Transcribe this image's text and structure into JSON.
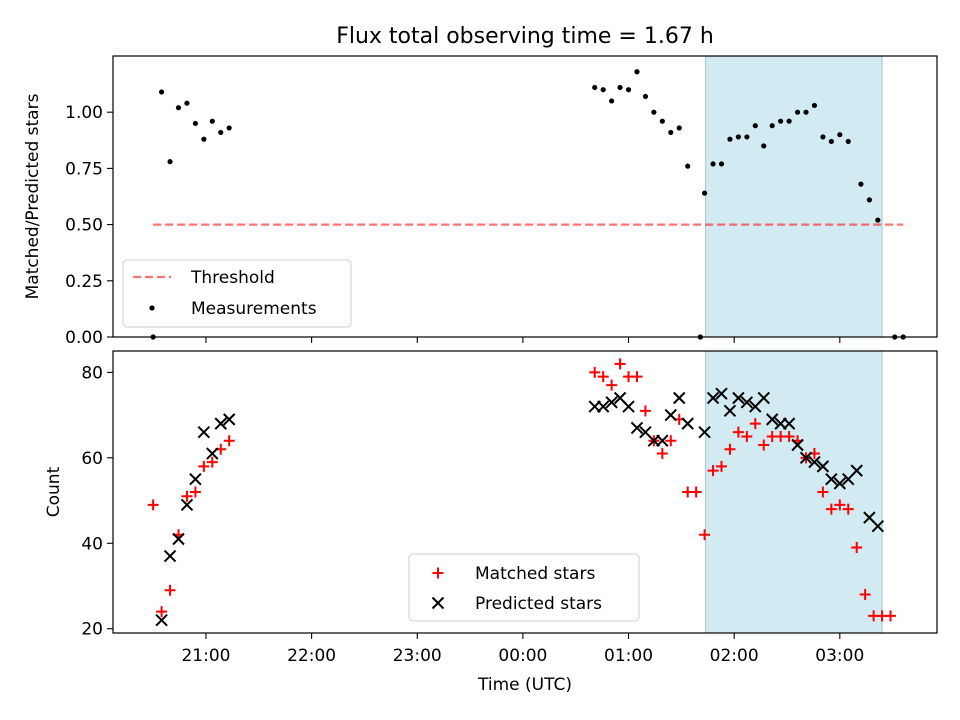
{
  "figure": {
    "title": "Flux total observing time = 1.67 h"
  },
  "chart_data": [
    {
      "type": "scatter",
      "ylabel": "Matched/Predicted stars",
      "xlim_hours": [
        -3.88,
        3.92
      ],
      "ylim": [
        0,
        1.25
      ],
      "ytick_values": [
        0.0,
        0.25,
        0.5,
        0.75,
        1.0
      ],
      "yticks": [
        "0.00",
        "0.25",
        "0.50",
        "0.75",
        "1.00"
      ],
      "x_tick_hours": [
        -3,
        -2,
        -1,
        0,
        1,
        2,
        3
      ],
      "shaded_span": {
        "x0": 1.73,
        "x1": 3.4,
        "color": "#add8e6"
      },
      "threshold": {
        "name": "Threshold",
        "x": [
          -3.5,
          3.6
        ],
        "y": 0.5,
        "color": "#ff0000",
        "style": "dashed"
      },
      "series": [
        {
          "name": "Measurements",
          "color": "#000000",
          "marker": "dot",
          "points": [
            [
              -3.5,
              0.0
            ],
            [
              -3.42,
              1.09
            ],
            [
              -3.34,
              0.78
            ],
            [
              -3.26,
              1.02
            ],
            [
              -3.18,
              1.04
            ],
            [
              -3.1,
              0.95
            ],
            [
              -3.02,
              0.88
            ],
            [
              -2.94,
              0.96
            ],
            [
              -2.86,
              0.91
            ],
            [
              -2.78,
              0.93
            ],
            [
              0.68,
              1.11
            ],
            [
              0.76,
              1.1
            ],
            [
              0.84,
              1.05
            ],
            [
              0.92,
              1.11
            ],
            [
              1.0,
              1.1
            ],
            [
              1.08,
              1.18
            ],
            [
              1.16,
              1.07
            ],
            [
              1.24,
              1.0
            ],
            [
              1.32,
              0.96
            ],
            [
              1.4,
              0.91
            ],
            [
              1.48,
              0.93
            ],
            [
              1.56,
              0.76
            ],
            [
              1.68,
              0.0
            ],
            [
              1.72,
              0.64
            ],
            [
              1.8,
              0.77
            ],
            [
              1.88,
              0.77
            ],
            [
              1.96,
              0.88
            ],
            [
              2.04,
              0.89
            ],
            [
              2.12,
              0.89
            ],
            [
              2.2,
              0.94
            ],
            [
              2.28,
              0.85
            ],
            [
              2.36,
              0.94
            ],
            [
              2.44,
              0.96
            ],
            [
              2.52,
              0.96
            ],
            [
              2.6,
              1.0
            ],
            [
              2.68,
              1.0
            ],
            [
              2.76,
              1.03
            ],
            [
              2.84,
              0.89
            ],
            [
              2.92,
              0.87
            ],
            [
              3.0,
              0.9
            ],
            [
              3.08,
              0.87
            ],
            [
              3.2,
              0.68
            ],
            [
              3.28,
              0.61
            ],
            [
              3.36,
              0.52
            ],
            [
              3.52,
              0.0
            ],
            [
              3.6,
              0.0
            ]
          ]
        }
      ],
      "legend": {
        "position": "lower-left",
        "entries": [
          "Threshold",
          "Measurements"
        ]
      }
    },
    {
      "type": "scatter",
      "xlabel": "Time (UTC)",
      "ylabel": "Count",
      "xlim_hours": [
        -3.88,
        3.92
      ],
      "ylim": [
        19,
        85
      ],
      "ytick_values": [
        20,
        40,
        60,
        80
      ],
      "yticks": [
        "20",
        "40",
        "60",
        "80"
      ],
      "x_tick_hours": [
        -3,
        -2,
        -1,
        0,
        1,
        2,
        3
      ],
      "xticks": [
        "21:00",
        "22:00",
        "23:00",
        "00:00",
        "01:00",
        "02:00",
        "03:00"
      ],
      "shaded_span": {
        "x0": 1.73,
        "x1": 3.4,
        "color": "#add8e6"
      },
      "series": [
        {
          "name": "Matched stars",
          "color": "#ff0000",
          "marker": "plus",
          "points": [
            [
              -3.5,
              49
            ],
            [
              -3.42,
              24
            ],
            [
              -3.34,
              29
            ],
            [
              -3.26,
              42
            ],
            [
              -3.18,
              51
            ],
            [
              -3.1,
              52
            ],
            [
              -3.02,
              58
            ],
            [
              -2.94,
              59
            ],
            [
              -2.86,
              62
            ],
            [
              -2.78,
              64
            ],
            [
              0.68,
              80
            ],
            [
              0.76,
              79
            ],
            [
              0.84,
              77
            ],
            [
              0.92,
              82
            ],
            [
              1.0,
              79
            ],
            [
              1.08,
              79
            ],
            [
              1.16,
              71
            ],
            [
              1.24,
              64
            ],
            [
              1.32,
              61
            ],
            [
              1.4,
              64
            ],
            [
              1.48,
              69
            ],
            [
              1.56,
              52
            ],
            [
              1.64,
              52
            ],
            [
              1.72,
              42
            ],
            [
              1.8,
              57
            ],
            [
              1.88,
              58
            ],
            [
              1.96,
              62
            ],
            [
              2.04,
              66
            ],
            [
              2.12,
              65
            ],
            [
              2.2,
              68
            ],
            [
              2.28,
              63
            ],
            [
              2.36,
              65
            ],
            [
              2.44,
              65
            ],
            [
              2.52,
              65
            ],
            [
              2.6,
              64
            ],
            [
              2.68,
              60
            ],
            [
              2.76,
              61
            ],
            [
              2.84,
              52
            ],
            [
              2.92,
              48
            ],
            [
              3.0,
              49
            ],
            [
              3.08,
              48
            ],
            [
              3.16,
              39
            ],
            [
              3.24,
              28
            ],
            [
              3.32,
              23
            ],
            [
              3.4,
              23
            ],
            [
              3.48,
              23
            ]
          ]
        },
        {
          "name": "Predicted stars",
          "color": "#000000",
          "marker": "x",
          "points": [
            [
              -3.42,
              22
            ],
            [
              -3.34,
              37
            ],
            [
              -3.26,
              41
            ],
            [
              -3.18,
              49
            ],
            [
              -3.1,
              55
            ],
            [
              -3.02,
              66
            ],
            [
              -2.94,
              61
            ],
            [
              -2.86,
              68
            ],
            [
              -2.78,
              69
            ],
            [
              0.68,
              72
            ],
            [
              0.76,
              72
            ],
            [
              0.84,
              73
            ],
            [
              0.92,
              74
            ],
            [
              1.0,
              72
            ],
            [
              1.08,
              67
            ],
            [
              1.16,
              66
            ],
            [
              1.24,
              64
            ],
            [
              1.32,
              64
            ],
            [
              1.4,
              70
            ],
            [
              1.48,
              74
            ],
            [
              1.56,
              68
            ],
            [
              1.72,
              66
            ],
            [
              1.8,
              74
            ],
            [
              1.88,
              75
            ],
            [
              1.96,
              71
            ],
            [
              2.04,
              74
            ],
            [
              2.12,
              73
            ],
            [
              2.2,
              72
            ],
            [
              2.28,
              74
            ],
            [
              2.36,
              69
            ],
            [
              2.44,
              68
            ],
            [
              2.52,
              68
            ],
            [
              2.6,
              63
            ],
            [
              2.68,
              60
            ],
            [
              2.76,
              59
            ],
            [
              2.84,
              58
            ],
            [
              2.92,
              55
            ],
            [
              3.0,
              54
            ],
            [
              3.08,
              55
            ],
            [
              3.16,
              57
            ],
            [
              3.28,
              46
            ],
            [
              3.36,
              44
            ]
          ]
        }
      ],
      "legend": {
        "position": "lower-center",
        "entries": [
          "Matched stars",
          "Predicted stars"
        ]
      }
    }
  ]
}
